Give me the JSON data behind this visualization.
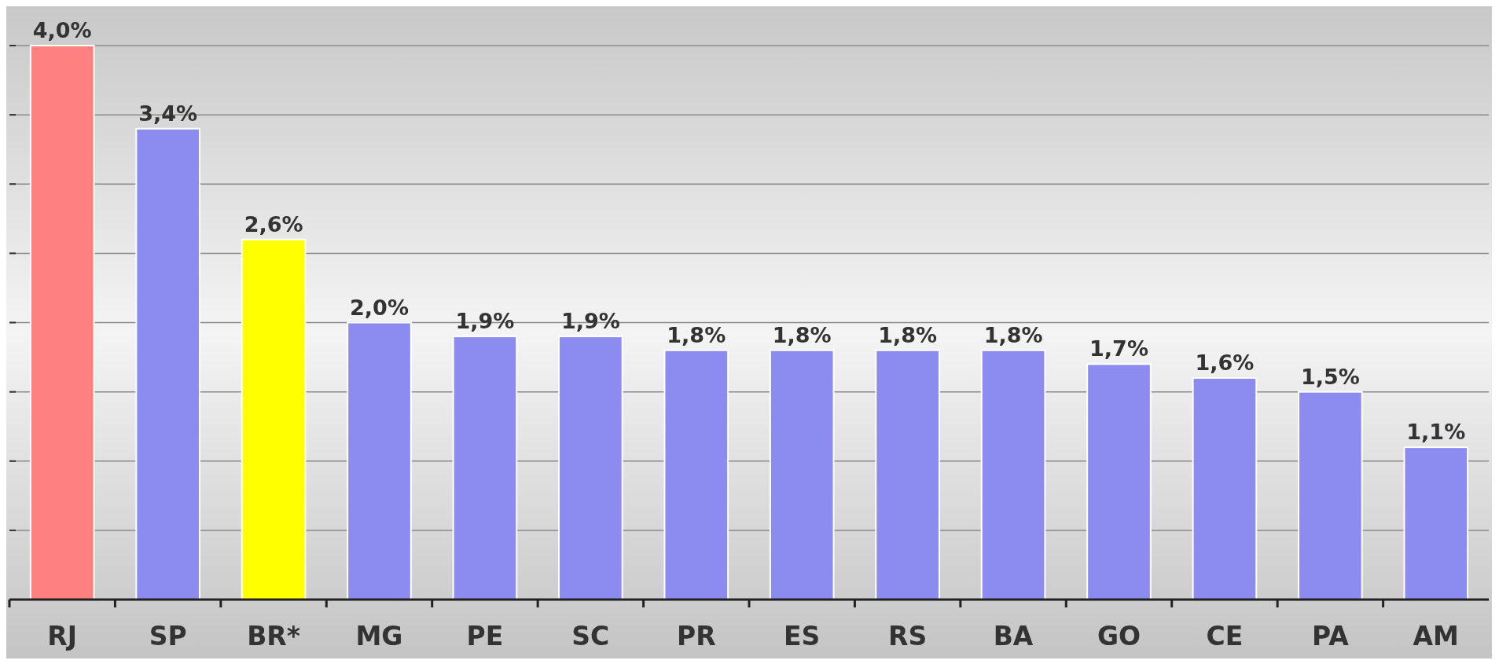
{
  "chart_data": {
    "type": "bar",
    "categories": [
      "RJ",
      "SP",
      "BR*",
      "MG",
      "PE",
      "SC",
      "PR",
      "ES",
      "RS",
      "BA",
      "GO",
      "CE",
      "PA",
      "AM"
    ],
    "values": [
      4.0,
      3.4,
      2.6,
      2.0,
      1.9,
      1.9,
      1.8,
      1.8,
      1.8,
      1.8,
      1.7,
      1.6,
      1.5,
      1.1
    ],
    "colors": [
      "#ff8080",
      "#8c8cf0",
      "#ffff00",
      "#8c8cf0",
      "#8c8cf0",
      "#8c8cf0",
      "#8c8cf0",
      "#8c8cf0",
      "#8c8cf0",
      "#8c8cf0",
      "#8c8cf0",
      "#8c8cf0",
      "#8c8cf0",
      "#8c8cf0"
    ],
    "value_labels": [
      "4,0%",
      "3,4%",
      "2,6%",
      "2,0%",
      "1,9%",
      "1,9%",
      "1,8%",
      "1,8%",
      "1,8%",
      "1,8%",
      "1,7%",
      "1,6%",
      "1,5%",
      "1,1%"
    ],
    "ylim": [
      0,
      4
    ],
    "yticks": [
      {
        "value": 0,
        "label": null
      },
      {
        "value": 0.5,
        "label": null
      },
      {
        "value": 1,
        "label": null
      },
      {
        "value": 1.5,
        "label": null
      },
      {
        "value": 2,
        "label": null
      },
      {
        "value": 2.5,
        "label": null
      },
      {
        "value": 3,
        "label": null
      },
      {
        "value": 3.5,
        "label": null
      },
      {
        "value": 4,
        "label": null
      }
    ],
    "tick_labels": "x",
    "grid": "y"
  }
}
